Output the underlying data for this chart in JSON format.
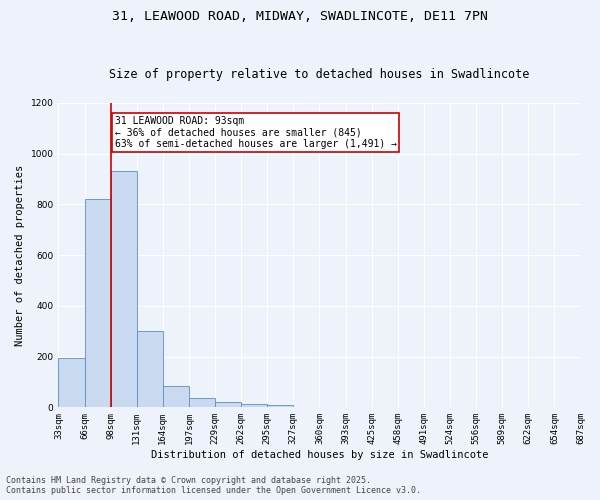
{
  "title1": "31, LEAWOOD ROAD, MIDWAY, SWADLINCOTE, DE11 7PN",
  "title2": "Size of property relative to detached houses in Swadlincote",
  "xlabel": "Distribution of detached houses by size in Swadlincote",
  "ylabel": "Number of detached properties",
  "bins": [
    "33sqm",
    "66sqm",
    "98sqm",
    "131sqm",
    "164sqm",
    "197sqm",
    "229sqm",
    "262sqm",
    "295sqm",
    "327sqm",
    "360sqm",
    "393sqm",
    "425sqm",
    "458sqm",
    "491sqm",
    "524sqm",
    "556sqm",
    "589sqm",
    "622sqm",
    "654sqm",
    "687sqm"
  ],
  "bar_values": [
    195,
    820,
    930,
    300,
    85,
    35,
    20,
    12,
    8,
    0,
    0,
    0,
    0,
    0,
    0,
    0,
    0,
    0,
    0,
    0
  ],
  "bar_color": "#c9d9f0",
  "bar_edge_color": "#5b8ec4",
  "annotation_text": "31 LEAWOOD ROAD: 93sqm\n← 36% of detached houses are smaller (845)\n63% of semi-detached houses are larger (1,491) →",
  "annotation_box_color": "#ffffff",
  "annotation_box_edge": "#cc0000",
  "vline_color": "#cc0000",
  "ylim": [
    0,
    1200
  ],
  "yticks": [
    0,
    200,
    400,
    600,
    800,
    1000,
    1200
  ],
  "background_color": "#eef2fa",
  "footnote1": "Contains HM Land Registry data © Crown copyright and database right 2025.",
  "footnote2": "Contains public sector information licensed under the Open Government Licence v3.0.",
  "title1_fontsize": 9.5,
  "title2_fontsize": 8.5,
  "axis_label_fontsize": 7.5,
  "tick_fontsize": 6.5,
  "annotation_fontsize": 7,
  "footnote_fontsize": 6
}
